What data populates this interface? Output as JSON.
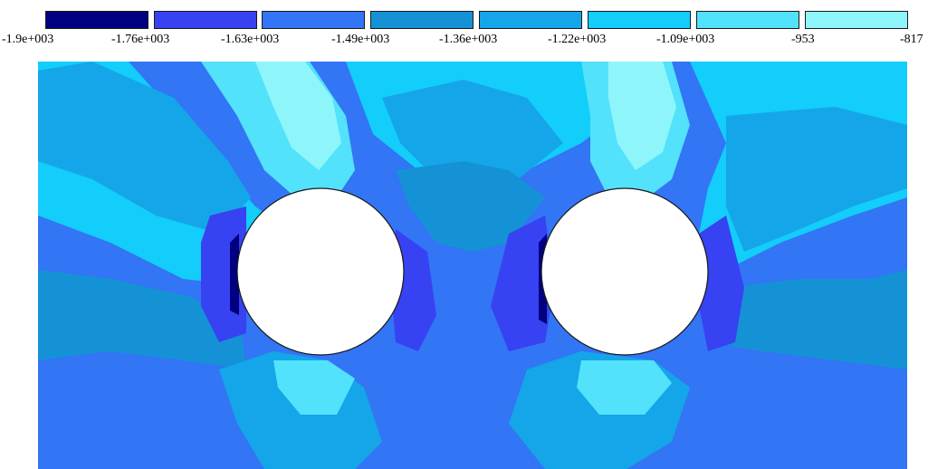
{
  "chart_data": {
    "type": "heatmap",
    "title": "",
    "legend": {
      "position": "top",
      "colors": [
        "#000080",
        "#3742f2",
        "#3275f5",
        "#1592d6",
        "#14a6e8",
        "#13cdfb",
        "#52e2fb",
        "#8ef6fb"
      ],
      "tick_labels": [
        "-1.9e+003",
        "-1.76e+003",
        "-1.63e+003",
        "-1.49e+003",
        "-1.36e+003",
        "-1.22e+003",
        "-1.09e+003",
        "-953",
        "-817"
      ],
      "tick_values": [
        -1900,
        -1760,
        -1630,
        -1490,
        -1360,
        -1220,
        -1090,
        -953,
        -817
      ]
    },
    "xlabel": "",
    "ylabel": "",
    "holes": 2
  }
}
